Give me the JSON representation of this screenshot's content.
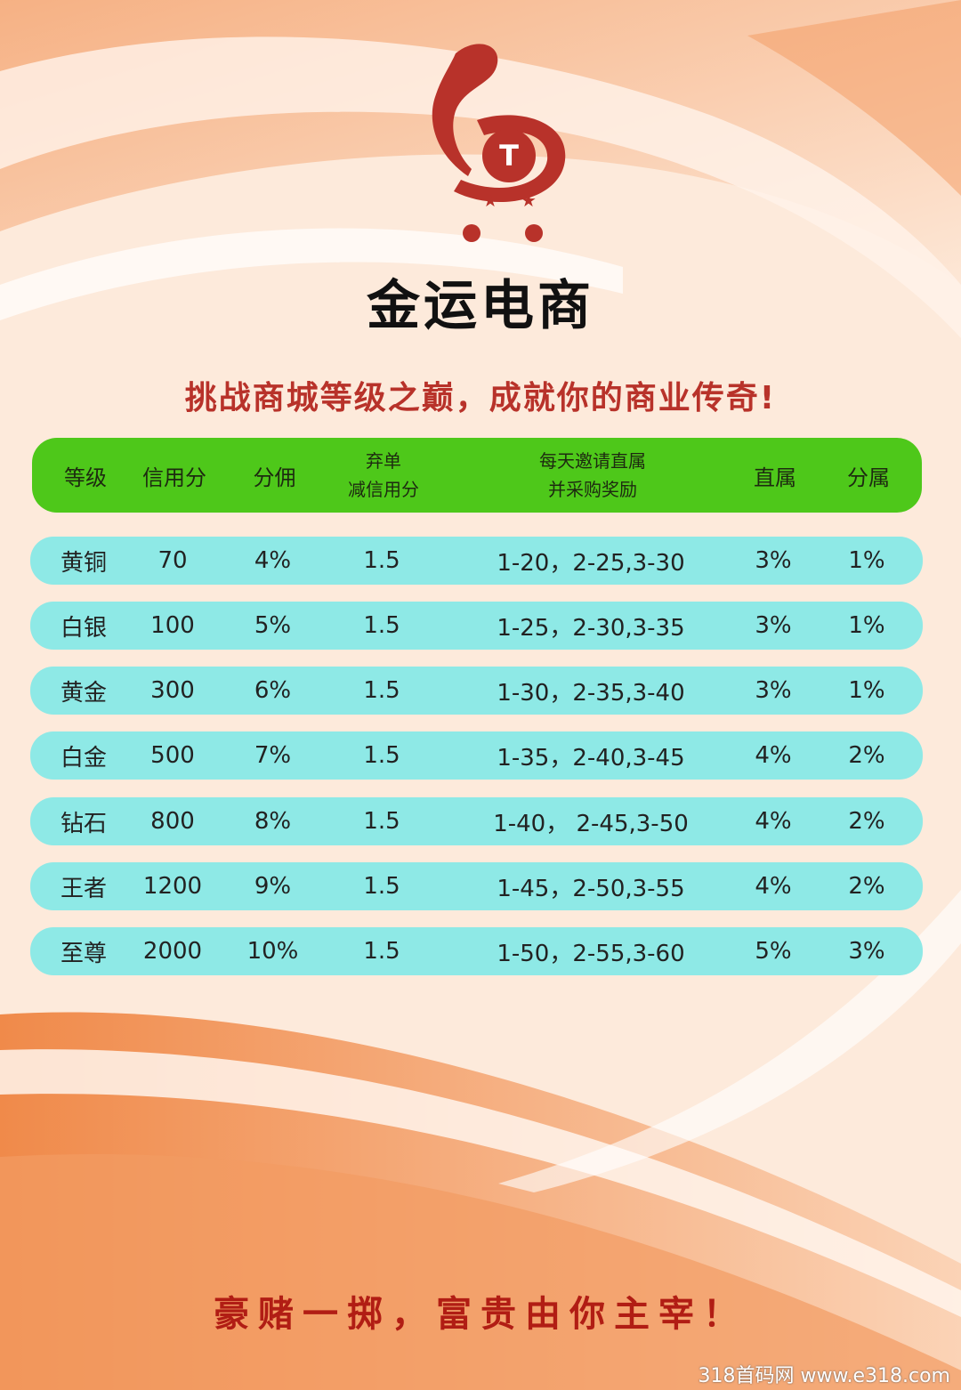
{
  "brand": {
    "name": "金运电商",
    "logo_letters": "T"
  },
  "slogan": "挑战商城等级之巅，成就你的商业传奇!",
  "table": {
    "headers": {
      "level": "等级",
      "credit": "信用分",
      "commission": "分佣",
      "abandon_line1": "弃单",
      "abandon_line2": "减信用分",
      "invite_line1": "每天邀请直属",
      "invite_line2": "并采购奖励",
      "direct": "直属",
      "sub": "分属"
    },
    "rows": [
      {
        "level": "黄铜",
        "credit": "70",
        "commission": "4%",
        "abandon": "1.5",
        "invite": "1-20，2-25,3-30",
        "direct": "3%",
        "sub": "1%"
      },
      {
        "level": "白银",
        "credit": "100",
        "commission": "5%",
        "abandon": "1.5",
        "invite": "1-25，2-30,3-35",
        "direct": "3%",
        "sub": "1%"
      },
      {
        "level": "黄金",
        "credit": "300",
        "commission": "6%",
        "abandon": "1.5",
        "invite": "1-30，2-35,3-40",
        "direct": "3%",
        "sub": "1%"
      },
      {
        "level": "白金",
        "credit": "500",
        "commission": "7%",
        "abandon": "1.5",
        "invite": "1-35，2-40,3-45",
        "direct": "4%",
        "sub": "2%"
      },
      {
        "level": "钻石",
        "credit": "800",
        "commission": "8%",
        "abandon": "1.5",
        "invite": "1-40， 2-45,3-50",
        "direct": "4%",
        "sub": "2%"
      },
      {
        "level": "王者",
        "credit": "1200",
        "commission": "9%",
        "abandon": "1.5",
        "invite": "1-45，2-50,3-55",
        "direct": "4%",
        "sub": "2%"
      },
      {
        "level": "至尊",
        "credit": "2000",
        "commission": "10%",
        "abandon": "1.5",
        "invite": "1-50，2-55,3-60",
        "direct": "5%",
        "sub": "3%"
      }
    ]
  },
  "footer": "豪赌一掷，富贵由你主宰！",
  "watermark": "318首码网 www.e318.com",
  "colors": {
    "header_green": "#4ec81a",
    "row_cyan": "#8ee9e6",
    "brand_red": "#b8322a",
    "footer_red": "#b11d14"
  }
}
